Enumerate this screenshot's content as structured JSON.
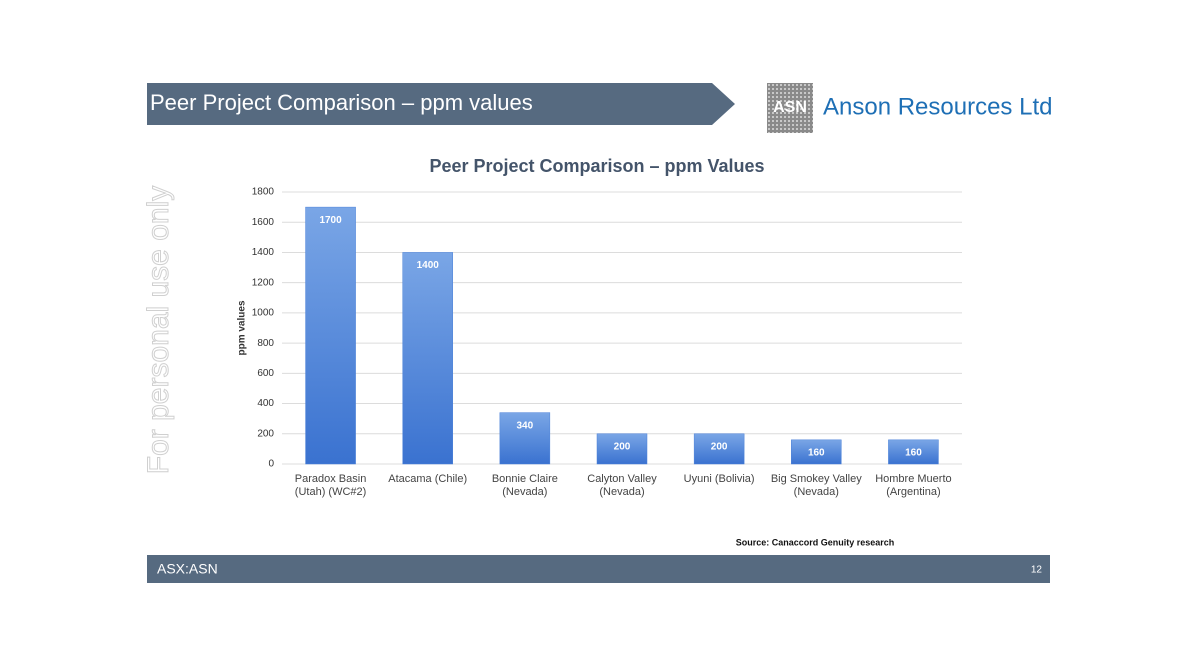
{
  "header": {
    "title": "Peer Project Comparison – ppm values",
    "logo_mark": "ASN",
    "company": "Anson Resources Ltd"
  },
  "watermark": "For personal use only",
  "chart_data": {
    "type": "bar",
    "title": "Peer Project Comparison – ppm Values",
    "y_label": "ppm values",
    "categories": [
      "Paradox Basin (Utah) (WC#2)",
      "Atacama (Chile)",
      "Bonnie Claire (Nevada)",
      "Calyton Valley (Nevada)",
      "Uyuni (Bolivia)",
      "Big Smokey Valley (Nevada)",
      "Hombre Muerto (Argentina)"
    ],
    "values": [
      1700,
      1400,
      340,
      200,
      200,
      160,
      160
    ],
    "color": "#4a80d8",
    "ylim": [
      0,
      1800
    ],
    "yticks": [
      0,
      200,
      400,
      600,
      800,
      1000,
      1200,
      1400,
      1600,
      1800
    ],
    "grid": true
  },
  "source": "Source: Canaccord Genuity research",
  "footer": {
    "ticker": "ASX:ASN",
    "page": "12"
  }
}
